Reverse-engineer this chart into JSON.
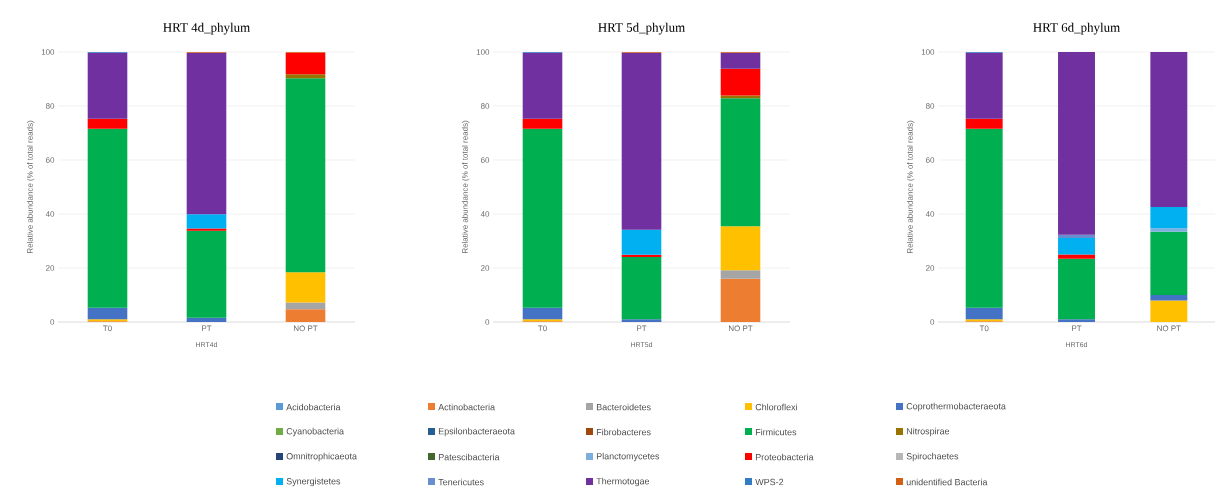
{
  "chart_data": [
    {
      "type": "bar",
      "stacked": true,
      "title": "HRT 4d_phylum",
      "xlabel": "HRT4d",
      "ylabel": "Relative abundance (% of total reads)",
      "categories": [
        "T0",
        "PT",
        "NO PT"
      ],
      "ylim": [
        0,
        100
      ],
      "yticks": [
        0,
        20,
        40,
        60,
        80,
        100
      ],
      "grid": "y",
      "legend": false,
      "series": [
        {
          "color": "#5b9bd5",
          "values": [
            null,
            null,
            null
          ]
        },
        {
          "color": "#ed7d31",
          "values": [
            0.3,
            null,
            4.7
          ]
        },
        {
          "color": "#a5a5a5",
          "values": [
            null,
            null,
            2.5
          ]
        },
        {
          "color": "#ffc000",
          "values": [
            0.7,
            null,
            11.2
          ]
        },
        {
          "color": "#4472c4",
          "values": [
            4.3,
            1.6,
            null
          ]
        },
        {
          "color": "#70ad47",
          "values": [
            null,
            null,
            null
          ]
        },
        {
          "color": "#255e91",
          "values": [
            null,
            null,
            null
          ]
        },
        {
          "color": "#9e480e",
          "values": [
            null,
            null,
            null
          ]
        },
        {
          "color": "#00b050",
          "values": [
            66.3,
            32.2,
            71.9
          ]
        },
        {
          "color": "#997300",
          "values": [
            null,
            null,
            1.5
          ]
        },
        {
          "color": "#264478",
          "values": [
            null,
            null,
            null
          ]
        },
        {
          "color": "#43682b",
          "values": [
            null,
            null,
            null
          ]
        },
        {
          "color": "#7cafdd",
          "values": [
            null,
            null,
            null
          ]
        },
        {
          "color": "#ff0000",
          "values": [
            3.7,
            0.8,
            7.9
          ]
        },
        {
          "color": "#b7b7b7",
          "values": [
            null,
            null,
            null
          ]
        },
        {
          "color": "#00b0f0",
          "values": [
            null,
            5.3,
            null
          ]
        },
        {
          "color": "#698ed0",
          "values": [
            null,
            null,
            null
          ]
        },
        {
          "color": "#7030a0",
          "values": [
            24.4,
            59.8,
            null
          ]
        },
        {
          "color": "#327dc2",
          "values": [
            0.3,
            null,
            null
          ]
        },
        {
          "color": "#d26012",
          "values": [
            null,
            0.3,
            0.3
          ]
        }
      ]
    },
    {
      "type": "bar",
      "stacked": true,
      "title": "HRT 5d_phylum",
      "xlabel": "HRT5d",
      "ylabel": "Relative abundance (% of total reads)",
      "categories": [
        "T0",
        "PT",
        "NO PT"
      ],
      "ylim": [
        0,
        100
      ],
      "yticks": [
        0,
        20,
        40,
        60,
        80,
        100
      ],
      "grid": "y",
      "legend": "bottom",
      "series": [
        {
          "name": "Acidobacteria",
          "color": "#5b9bd5",
          "values": [
            null,
            null,
            null
          ]
        },
        {
          "name": "Actinobacteria",
          "color": "#ed7d31",
          "values": [
            0.3,
            null,
            16
          ]
        },
        {
          "name": "Bacteroidetes",
          "color": "#a5a5a5",
          "values": [
            null,
            null,
            3.2
          ]
        },
        {
          "name": "Chloroflexi",
          "color": "#ffc000",
          "values": [
            0.7,
            null,
            16.3
          ]
        },
        {
          "name": "Coprothermobacteraeota",
          "color": "#4472c4",
          "values": [
            4.3,
            1,
            null
          ]
        },
        {
          "name": "Cyanobacteria",
          "color": "#70ad47",
          "values": [
            null,
            null,
            null
          ]
        },
        {
          "name": "Epsilonbacteraeota",
          "color": "#255e91",
          "values": [
            null,
            null,
            null
          ]
        },
        {
          "name": "Fibrobacteres",
          "color": "#9e480e",
          "values": [
            null,
            null,
            null
          ]
        },
        {
          "name": "Firmicutes",
          "color": "#00b050",
          "values": [
            66.3,
            23.1,
            47.4
          ]
        },
        {
          "name": "Nitrospirae",
          "color": "#997300",
          "values": [
            null,
            null,
            1
          ]
        },
        {
          "name": "Omnitrophicaeota",
          "color": "#264478",
          "values": [
            null,
            null,
            null
          ]
        },
        {
          "name": "Patescibacteria",
          "color": "#43682b",
          "values": [
            null,
            null,
            null
          ]
        },
        {
          "name": "Planctomycetes",
          "color": "#7cafdd",
          "values": [
            null,
            null,
            null
          ]
        },
        {
          "name": "Proteobacteria",
          "color": "#ff0000",
          "values": [
            3.7,
            0.8,
            9.9
          ]
        },
        {
          "name": "Spirochaetes",
          "color": "#b7b7b7",
          "values": [
            null,
            null,
            null
          ]
        },
        {
          "name": "Synergistetes",
          "color": "#00b0f0",
          "values": [
            null,
            9.3,
            null
          ]
        },
        {
          "name": "Tenericutes",
          "color": "#698ed0",
          "values": [
            null,
            null,
            null
          ]
        },
        {
          "name": "Thermotogae",
          "color": "#7030a0",
          "values": [
            24.4,
            65.5,
            5.9
          ]
        },
        {
          "name": "WPS-2",
          "color": "#327dc2",
          "values": [
            0.3,
            null,
            null
          ]
        },
        {
          "name": "unidentified Bacteria",
          "color": "#d26012",
          "values": [
            null,
            0.3,
            0.3
          ]
        }
      ]
    },
    {
      "type": "bar",
      "stacked": true,
      "title": "HRT 6d_phylum",
      "xlabel": "HRT6d",
      "ylabel": "Relative abundance (% of total reads)",
      "categories": [
        "T0",
        "PT",
        "NO PT"
      ],
      "ylim": [
        0,
        100
      ],
      "yticks": [
        0,
        20,
        40,
        60,
        80,
        100
      ],
      "grid": "y",
      "legend": false,
      "series": [
        {
          "color": "#5b9bd5",
          "values": [
            null,
            null,
            null
          ]
        },
        {
          "color": "#ed7d31",
          "values": [
            0.3,
            null,
            null
          ]
        },
        {
          "color": "#a5a5a5",
          "values": [
            null,
            null,
            null
          ]
        },
        {
          "color": "#ffc000",
          "values": [
            0.7,
            null,
            8
          ]
        },
        {
          "color": "#4472c4",
          "values": [
            4.3,
            1,
            2
          ]
        },
        {
          "color": "#70ad47",
          "values": [
            null,
            null,
            null
          ]
        },
        {
          "color": "#255e91",
          "values": [
            null,
            null,
            null
          ]
        },
        {
          "color": "#9e480e",
          "values": [
            null,
            null,
            null
          ]
        },
        {
          "color": "#00b050",
          "values": [
            66.3,
            22.4,
            23.4
          ]
        },
        {
          "color": "#997300",
          "values": [
            null,
            null,
            null
          ]
        },
        {
          "color": "#264478",
          "values": [
            null,
            null,
            null
          ]
        },
        {
          "color": "#43682b",
          "values": [
            null,
            null,
            null
          ]
        },
        {
          "color": "#7cafdd",
          "values": [
            null,
            null,
            1.3
          ]
        },
        {
          "color": "#ff0000",
          "values": [
            3.7,
            1.6,
            null
          ]
        },
        {
          "color": "#b7b7b7",
          "values": [
            null,
            null,
            null
          ]
        },
        {
          "color": "#00b0f0",
          "values": [
            null,
            6.1,
            7.9
          ]
        },
        {
          "color": "#698ed0",
          "values": [
            null,
            1.2,
            null
          ]
        },
        {
          "color": "#7030a0",
          "values": [
            24.4,
            67.7,
            57.4
          ]
        },
        {
          "color": "#327dc2",
          "values": [
            0.3,
            null,
            null
          ]
        },
        {
          "color": "#d26012",
          "values": [
            null,
            null,
            null
          ]
        }
      ]
    }
  ]
}
